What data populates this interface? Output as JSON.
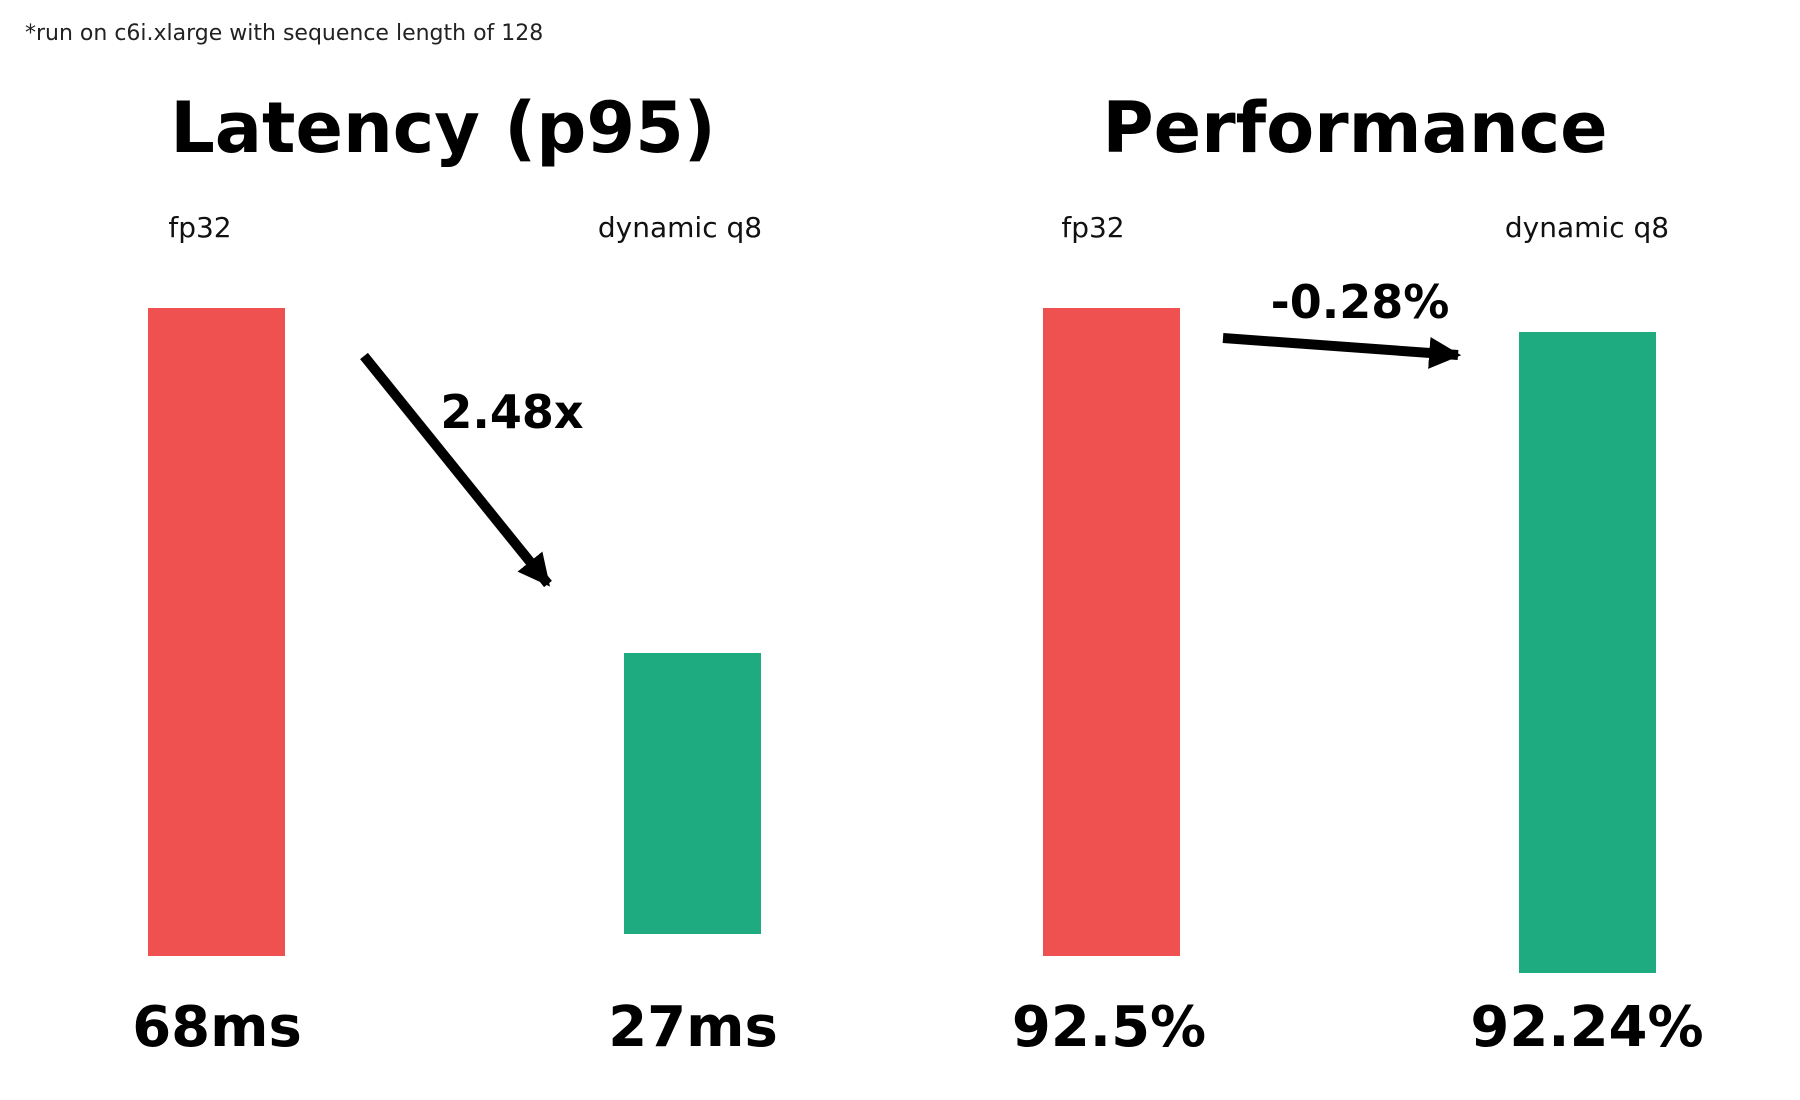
{
  "note": "*run on c6i.xlarge with sequence length of 128",
  "chart_data": [
    {
      "type": "bar",
      "title": "Latency (p95)",
      "categories": [
        "fp32",
        "dynamic q8"
      ],
      "values": [
        68,
        27
      ],
      "value_labels": [
        "68ms",
        "27ms"
      ],
      "unit": "ms",
      "colors": [
        "#ef5050",
        "#1eab80"
      ],
      "annotation": "2.48x"
    },
    {
      "type": "bar",
      "title": "Performance",
      "categories": [
        "fp32",
        "dynamic q8"
      ],
      "values": [
        92.5,
        92.24
      ],
      "value_labels": [
        "92.5%",
        "92.24%"
      ],
      "unit": "%",
      "colors": [
        "#ef5050",
        "#1eab80"
      ],
      "annotation": "-0.28%"
    }
  ]
}
